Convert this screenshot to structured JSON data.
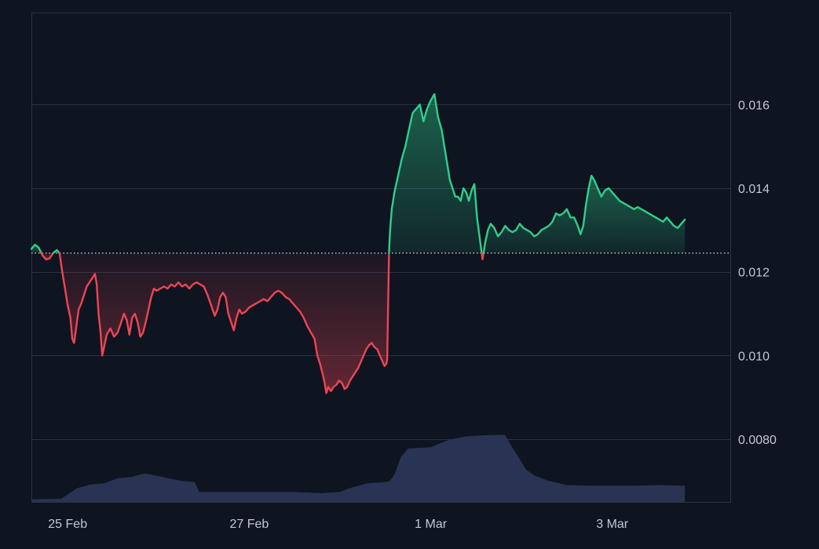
{
  "chart_data": {
    "type": "area",
    "baseline": 0.01245,
    "x_unit": "days since 24 Feb 00:00",
    "xlim": [
      0.6,
      8.3
    ],
    "ylim": [
      0.0065,
      0.0182
    ],
    "x_ticks": [
      {
        "label": "25 Feb",
        "x": 1.0
      },
      {
        "label": "27 Feb",
        "x": 3.0
      },
      {
        "label": "1 Mar",
        "x": 5.0
      },
      {
        "label": "3 Mar",
        "x": 7.0
      }
    ],
    "y_ticks": [
      {
        "label": "0.0080",
        "value": 0.008
      },
      {
        "label": "0.010",
        "value": 0.01
      },
      {
        "label": "0.012",
        "value": 0.012
      },
      {
        "label": "0.014",
        "value": 0.014
      },
      {
        "label": "0.016",
        "value": 0.016
      }
    ],
    "colors": {
      "up": "#2fcf8a",
      "down": "#ee4555",
      "volume": "#2b3556",
      "grid": "#2a3343",
      "baseline": "#c8ccd4",
      "tick_text": "#c3c8d2",
      "background": "#0e1420"
    },
    "price": [
      [
        0.6,
        0.01255
      ],
      [
        0.64,
        0.01265
      ],
      [
        0.68,
        0.01258
      ],
      [
        0.72,
        0.0124
      ],
      [
        0.76,
        0.0123
      ],
      [
        0.8,
        0.01232
      ],
      [
        0.84,
        0.01245
      ],
      [
        0.88,
        0.01252
      ],
      [
        0.91,
        0.01245
      ],
      [
        0.94,
        0.012
      ],
      [
        0.97,
        0.0116
      ],
      [
        1.0,
        0.0112
      ],
      [
        1.03,
        0.0109
      ],
      [
        1.05,
        0.0104
      ],
      [
        1.07,
        0.0103
      ],
      [
        1.09,
        0.0106
      ],
      [
        1.12,
        0.0111
      ],
      [
        1.15,
        0.01125
      ],
      [
        1.18,
        0.01145
      ],
      [
        1.21,
        0.01165
      ],
      [
        1.24,
        0.01175
      ],
      [
        1.27,
        0.01185
      ],
      [
        1.3,
        0.01195
      ],
      [
        1.32,
        0.0117
      ],
      [
        1.34,
        0.011
      ],
      [
        1.36,
        0.0106
      ],
      [
        1.38,
        0.01
      ],
      [
        1.4,
        0.0102
      ],
      [
        1.43,
        0.0105
      ],
      [
        1.47,
        0.01065
      ],
      [
        1.51,
        0.01045
      ],
      [
        1.55,
        0.01055
      ],
      [
        1.59,
        0.0108
      ],
      [
        1.62,
        0.011
      ],
      [
        1.65,
        0.01085
      ],
      [
        1.68,
        0.0105
      ],
      [
        1.71,
        0.0109
      ],
      [
        1.74,
        0.011
      ],
      [
        1.77,
        0.0108
      ],
      [
        1.8,
        0.01045
      ],
      [
        1.83,
        0.01055
      ],
      [
        1.86,
        0.0108
      ],
      [
        1.89,
        0.0111
      ],
      [
        1.92,
        0.0114
      ],
      [
        1.95,
        0.0116
      ],
      [
        1.98,
        0.01155
      ],
      [
        2.02,
        0.0116
      ],
      [
        2.06,
        0.01165
      ],
      [
        2.1,
        0.0116
      ],
      [
        2.14,
        0.0117
      ],
      [
        2.18,
        0.01165
      ],
      [
        2.22,
        0.01175
      ],
      [
        2.26,
        0.01165
      ],
      [
        2.3,
        0.0117
      ],
      [
        2.34,
        0.0116
      ],
      [
        2.38,
        0.0117
      ],
      [
        2.42,
        0.01175
      ],
      [
        2.46,
        0.0117
      ],
      [
        2.5,
        0.01165
      ],
      [
        2.54,
        0.01145
      ],
      [
        2.58,
        0.0112
      ],
      [
        2.62,
        0.01095
      ],
      [
        2.65,
        0.0111
      ],
      [
        2.68,
        0.0114
      ],
      [
        2.71,
        0.0115
      ],
      [
        2.74,
        0.0114
      ],
      [
        2.77,
        0.011
      ],
      [
        2.8,
        0.0108
      ],
      [
        2.83,
        0.0106
      ],
      [
        2.86,
        0.0109
      ],
      [
        2.89,
        0.0111
      ],
      [
        2.92,
        0.011
      ],
      [
        2.96,
        0.01105
      ],
      [
        3.0,
        0.01115
      ],
      [
        3.04,
        0.0112
      ],
      [
        3.08,
        0.01125
      ],
      [
        3.12,
        0.0113
      ],
      [
        3.16,
        0.01135
      ],
      [
        3.2,
        0.0113
      ],
      [
        3.24,
        0.0114
      ],
      [
        3.28,
        0.0115
      ],
      [
        3.32,
        0.01155
      ],
      [
        3.36,
        0.0115
      ],
      [
        3.4,
        0.0114
      ],
      [
        3.44,
        0.01135
      ],
      [
        3.48,
        0.01125
      ],
      [
        3.52,
        0.01115
      ],
      [
        3.56,
        0.01105
      ],
      [
        3.6,
        0.0109
      ],
      [
        3.64,
        0.0107
      ],
      [
        3.68,
        0.01055
      ],
      [
        3.72,
        0.0104
      ],
      [
        3.75,
        0.01
      ],
      [
        3.78,
        0.0098
      ],
      [
        3.81,
        0.00955
      ],
      [
        3.83,
        0.00935
      ],
      [
        3.85,
        0.0091
      ],
      [
        3.87,
        0.00925
      ],
      [
        3.9,
        0.00915
      ],
      [
        3.93,
        0.00925
      ],
      [
        3.96,
        0.0093
      ],
      [
        3.99,
        0.0094
      ],
      [
        4.02,
        0.00935
      ],
      [
        4.05,
        0.0092
      ],
      [
        4.08,
        0.00925
      ],
      [
        4.11,
        0.0094
      ],
      [
        4.14,
        0.0095
      ],
      [
        4.17,
        0.0096
      ],
      [
        4.2,
        0.0097
      ],
      [
        4.23,
        0.00985
      ],
      [
        4.26,
        0.01
      ],
      [
        4.29,
        0.01015
      ],
      [
        4.32,
        0.01025
      ],
      [
        4.35,
        0.0103
      ],
      [
        4.38,
        0.0102
      ],
      [
        4.41,
        0.01015
      ],
      [
        4.44,
        0.01
      ],
      [
        4.47,
        0.00985
      ],
      [
        4.49,
        0.00975
      ],
      [
        4.51,
        0.0098
      ],
      [
        4.52,
        0.0099
      ],
      [
        4.54,
        0.01245
      ],
      [
        4.55,
        0.01295
      ],
      [
        4.57,
        0.0135
      ],
      [
        4.6,
        0.0139
      ],
      [
        4.64,
        0.0143
      ],
      [
        4.68,
        0.0147
      ],
      [
        4.72,
        0.015
      ],
      [
        4.76,
        0.0154
      ],
      [
        4.8,
        0.0158
      ],
      [
        4.84,
        0.0159
      ],
      [
        4.88,
        0.016
      ],
      [
        4.92,
        0.0156
      ],
      [
        4.96,
        0.0159
      ],
      [
        5.0,
        0.0161
      ],
      [
        5.04,
        0.01625
      ],
      [
        5.08,
        0.0157
      ],
      [
        5.12,
        0.0154
      ],
      [
        5.15,
        0.015
      ],
      [
        5.18,
        0.0146
      ],
      [
        5.21,
        0.0142
      ],
      [
        5.24,
        0.014
      ],
      [
        5.27,
        0.0138
      ],
      [
        5.3,
        0.0138
      ],
      [
        5.33,
        0.0137
      ],
      [
        5.36,
        0.014
      ],
      [
        5.39,
        0.0139
      ],
      [
        5.42,
        0.0137
      ],
      [
        5.45,
        0.01395
      ],
      [
        5.48,
        0.0141
      ],
      [
        5.51,
        0.0133
      ],
      [
        5.54,
        0.0128
      ],
      [
        5.57,
        0.0123
      ],
      [
        5.6,
        0.0127
      ],
      [
        5.63,
        0.013
      ],
      [
        5.66,
        0.01315
      ],
      [
        5.7,
        0.01305
      ],
      [
        5.74,
        0.01285
      ],
      [
        5.78,
        0.01295
      ],
      [
        5.82,
        0.0131
      ],
      [
        5.86,
        0.013
      ],
      [
        5.9,
        0.01295
      ],
      [
        5.94,
        0.013
      ],
      [
        5.98,
        0.01315
      ],
      [
        6.02,
        0.01305
      ],
      [
        6.06,
        0.013
      ],
      [
        6.1,
        0.01295
      ],
      [
        6.14,
        0.01285
      ],
      [
        6.18,
        0.0129
      ],
      [
        6.22,
        0.013
      ],
      [
        6.26,
        0.01305
      ],
      [
        6.3,
        0.0131
      ],
      [
        6.34,
        0.0132
      ],
      [
        6.38,
        0.0134
      ],
      [
        6.42,
        0.01335
      ],
      [
        6.46,
        0.0134
      ],
      [
        6.5,
        0.0135
      ],
      [
        6.54,
        0.0133
      ],
      [
        6.58,
        0.0133
      ],
      [
        6.62,
        0.0131
      ],
      [
        6.65,
        0.0129
      ],
      [
        6.68,
        0.0131
      ],
      [
        6.71,
        0.0136
      ],
      [
        6.74,
        0.014
      ],
      [
        6.77,
        0.0143
      ],
      [
        6.8,
        0.0142
      ],
      [
        6.84,
        0.014
      ],
      [
        6.88,
        0.0138
      ],
      [
        6.92,
        0.01395
      ],
      [
        6.96,
        0.014
      ],
      [
        7.0,
        0.0139
      ],
      [
        7.04,
        0.0138
      ],
      [
        7.08,
        0.0137
      ],
      [
        7.12,
        0.01365
      ],
      [
        7.16,
        0.0136
      ],
      [
        7.2,
        0.01355
      ],
      [
        7.24,
        0.0135
      ],
      [
        7.28,
        0.01355
      ],
      [
        7.32,
        0.0135
      ],
      [
        7.36,
        0.01345
      ],
      [
        7.4,
        0.0134
      ],
      [
        7.44,
        0.01335
      ],
      [
        7.48,
        0.0133
      ],
      [
        7.52,
        0.01325
      ],
      [
        7.56,
        0.0132
      ],
      [
        7.6,
        0.0133
      ],
      [
        7.64,
        0.0132
      ],
      [
        7.68,
        0.0131
      ],
      [
        7.72,
        0.01305
      ],
      [
        7.76,
        0.01315
      ],
      [
        7.8,
        0.01325
      ]
    ],
    "volume_ylim": [
      0,
      0.3
    ],
    "volume": [
      [
        0.6,
        0.01
      ],
      [
        0.8,
        0.012
      ],
      [
        0.93,
        0.013
      ],
      [
        1.1,
        0.055
      ],
      [
        1.25,
        0.07
      ],
      [
        1.4,
        0.075
      ],
      [
        1.55,
        0.095
      ],
      [
        1.7,
        0.1
      ],
      [
        1.85,
        0.115
      ],
      [
        2.05,
        0.1
      ],
      [
        2.25,
        0.085
      ],
      [
        2.4,
        0.08
      ],
      [
        2.45,
        0.04
      ],
      [
        2.6,
        0.04
      ],
      [
        3.0,
        0.04
      ],
      [
        3.5,
        0.04
      ],
      [
        3.8,
        0.035
      ],
      [
        4.0,
        0.04
      ],
      [
        4.1,
        0.055
      ],
      [
        4.3,
        0.075
      ],
      [
        4.5,
        0.08
      ],
      [
        4.55,
        0.085
      ],
      [
        4.6,
        0.11
      ],
      [
        4.67,
        0.18
      ],
      [
        4.75,
        0.215
      ],
      [
        5.0,
        0.22
      ],
      [
        5.2,
        0.25
      ],
      [
        5.4,
        0.265
      ],
      [
        5.7,
        0.27
      ],
      [
        5.82,
        0.27
      ],
      [
        5.88,
        0.23
      ],
      [
        5.95,
        0.19
      ],
      [
        6.05,
        0.13
      ],
      [
        6.15,
        0.105
      ],
      [
        6.3,
        0.085
      ],
      [
        6.5,
        0.068
      ],
      [
        6.8,
        0.065
      ],
      [
        7.2,
        0.065
      ],
      [
        7.5,
        0.068
      ],
      [
        7.8,
        0.065
      ]
    ]
  }
}
